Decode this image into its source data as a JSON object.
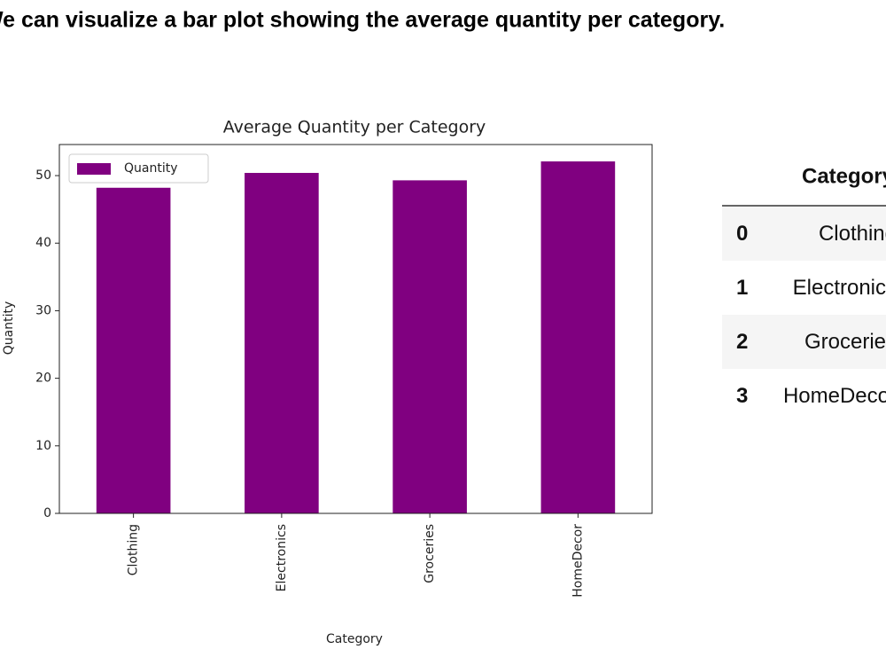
{
  "header": {
    "text": "We can visualize a bar plot showing the average quantity per category."
  },
  "chart_data": {
    "type": "bar",
    "title": "Average Quantity per Category",
    "x_label": "Category",
    "y_label": "Quantity",
    "categories": [
      "Clothing",
      "Electronics",
      "Groceries",
      "HomeDecor"
    ],
    "series": [
      {
        "name": "Quantity",
        "color": "#800080",
        "values": [
          48.2,
          50.4,
          49.3,
          52.1
        ]
      }
    ],
    "ylim": [
      0,
      54.6
    ],
    "yticks": [
      0,
      10,
      20,
      30,
      40,
      50
    ],
    "grid": false,
    "legend": "upper left"
  },
  "table": {
    "columns": [
      "Category"
    ],
    "rows": [
      [
        "0",
        "Clothing"
      ],
      [
        "1",
        "Electronics"
      ],
      [
        "2",
        "Groceries"
      ],
      [
        "3",
        "HomeDecor"
      ]
    ]
  }
}
